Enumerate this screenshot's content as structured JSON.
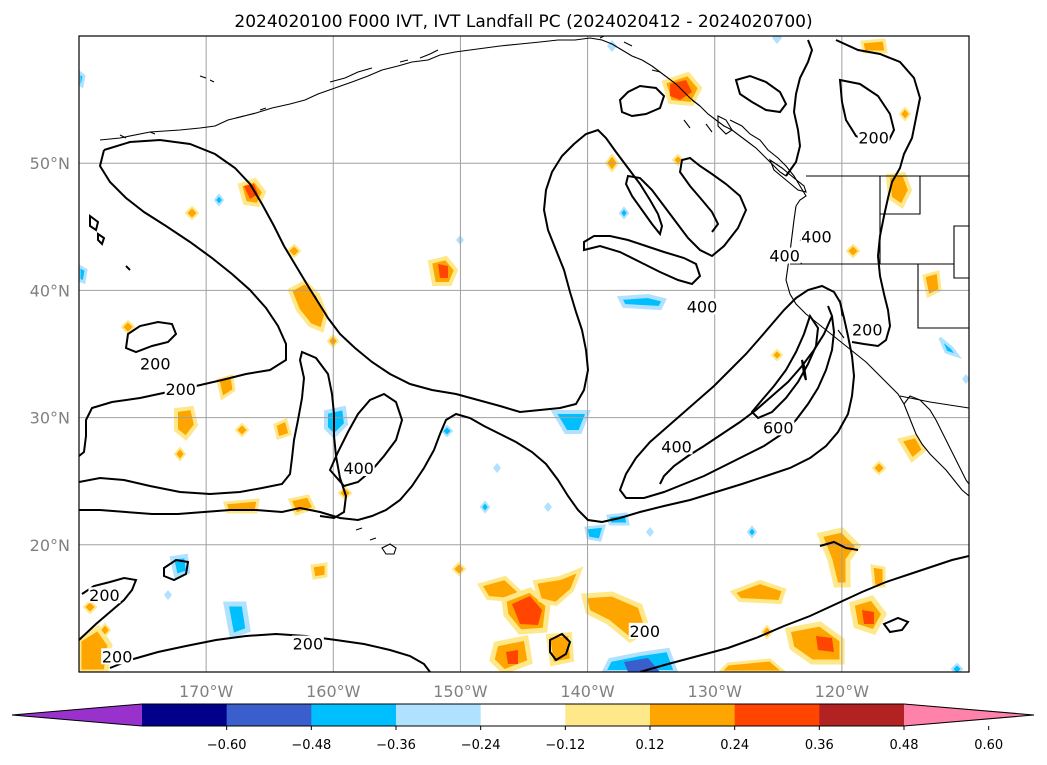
{
  "title": "2024020100 F000 IVT, IVT Landfall PC (2024020412 - 2024020700)",
  "map": {
    "projection": "equirectangular",
    "lon_range": [
      -180,
      -110
    ],
    "lat_range": [
      10,
      60
    ],
    "lon_labels": [
      "170°W",
      "160°W",
      "150°W",
      "140°W",
      "130°W",
      "120°W"
    ],
    "lat_labels": [
      "20°N",
      "30°N",
      "40°N",
      "50°N"
    ],
    "grid": true,
    "contour_color": "#000000",
    "contour_levels": [
      200,
      400,
      600
    ],
    "contour_labels": [
      {
        "text": "200",
        "lon": -174.0,
        "lat": 34.0
      },
      {
        "text": "200",
        "lon": -172.0,
        "lat": 32.0
      },
      {
        "text": "400",
        "lon": -158.0,
        "lat": 25.8
      },
      {
        "text": "200",
        "lon": -178.0,
        "lat": 15.8
      },
      {
        "text": "200",
        "lon": -177.0,
        "lat": 11.0
      },
      {
        "text": "200",
        "lon": -162.0,
        "lat": 12.0
      },
      {
        "text": "200",
        "lon": -135.5,
        "lat": 13.0
      },
      {
        "text": "400",
        "lon": -133.0,
        "lat": 27.5
      },
      {
        "text": "600",
        "lon": -125.0,
        "lat": 29.0
      },
      {
        "text": "400",
        "lon": -131.0,
        "lat": 38.5
      },
      {
        "text": "400",
        "lon": -124.5,
        "lat": 42.5
      },
      {
        "text": "400",
        "lon": -122.0,
        "lat": 44.0
      },
      {
        "text": "200",
        "lon": -117.5,
        "lat": 51.8
      },
      {
        "text": "200",
        "lon": -118.0,
        "lat": 36.7
      }
    ]
  },
  "colorbar": {
    "ticks": [
      "−0.60",
      "−0.48",
      "−0.36",
      "−0.24",
      "−0.12",
      "0.12",
      "0.24",
      "0.36",
      "0.48",
      "0.60"
    ],
    "colors": [
      "#9932cc",
      "#00008b",
      "#3a5fcd",
      "#00bfff",
      "#b0e2ff",
      "#ffffff",
      "#ffe88a",
      "#ffa500",
      "#ff4500",
      "#b22222",
      "#ff82ab"
    ]
  }
}
